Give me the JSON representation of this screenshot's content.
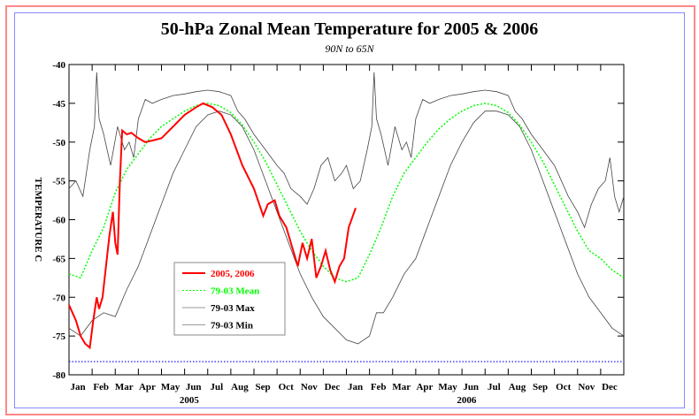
{
  "chart_data": {
    "type": "line",
    "title": "50-hPa Zonal Mean Temperature for 2005 & 2006",
    "subtitle": "90N to 65N",
    "ylabel": "TEMPERATURE C",
    "ylim": [
      -80,
      -40
    ],
    "yticks": [
      -40,
      -45,
      -50,
      -55,
      -60,
      -65,
      -70,
      -75,
      -80
    ],
    "xlim_months": [
      0,
      24
    ],
    "xtick_labels": [
      "Jan",
      "Feb",
      "Mar",
      "Apr",
      "May",
      "Jun",
      "Jul",
      "Aug",
      "Sep",
      "Oct",
      "Nov",
      "Dec",
      "Jan",
      "Feb",
      "Mar",
      "Apr",
      "May",
      "Jun",
      "Jul",
      "Aug",
      "Sep",
      "Oct",
      "Nov",
      "Dec"
    ],
    "year_labels": [
      "2005",
      "2006"
    ],
    "legend_position": "lower-left",
    "reference_line": {
      "y": -78.3,
      "color": "#0000ff",
      "style": "dotted"
    },
    "series": [
      {
        "name": "2005, 2006",
        "color": "#ff0000",
        "style": "solid",
        "x": [
          0,
          0.15,
          0.3,
          0.5,
          0.7,
          0.9,
          1.05,
          1.2,
          1.3,
          1.45,
          1.6,
          1.75,
          1.9,
          2.0,
          2.1,
          2.2,
          2.3,
          2.5,
          2.7,
          3.0,
          3.3,
          3.6,
          4.0,
          4.5,
          5.0,
          5.5,
          5.8,
          6.2,
          6.6,
          7.0,
          7.5,
          8.0,
          8.4,
          8.6,
          8.9,
          9.1,
          9.4,
          9.7,
          9.9,
          10.1,
          10.3,
          10.5,
          10.7,
          10.9,
          11.1,
          11.3,
          11.5,
          11.7,
          11.9,
          12.1,
          12.4
        ],
        "y": [
          -71,
          -72,
          -73,
          -75,
          -76,
          -76.5,
          -73,
          -70,
          -71.5,
          -70,
          -66,
          -62,
          -59,
          -63,
          -64.5,
          -55,
          -48.5,
          -49,
          -48.8,
          -49.5,
          -50,
          -49.8,
          -49.5,
          -48,
          -46.5,
          -45.5,
          -45,
          -45.5,
          -46.5,
          -49,
          -53,
          -56,
          -59.5,
          -58,
          -57.5,
          -59.5,
          -61,
          -64,
          -66,
          -63,
          -65,
          -62.5,
          -67.5,
          -66,
          -64,
          -66.5,
          -68,
          -66,
          -65,
          -61,
          -58.5
        ]
      },
      {
        "name": "79-03 Mean",
        "color": "#00ff00",
        "style": "dotted",
        "x": [
          0,
          0.5,
          1,
          1.5,
          2,
          2.5,
          3,
          3.5,
          4,
          4.5,
          5,
          5.5,
          6,
          6.5,
          7,
          7.5,
          8,
          8.5,
          9,
          9.5,
          10,
          10.5,
          11,
          11.5,
          12,
          12.5,
          13,
          13.5,
          14,
          14.5,
          15,
          15.5,
          16,
          16.5,
          17,
          17.5,
          18,
          18.5,
          19,
          19.5,
          20,
          20.5,
          21,
          21.5,
          22,
          22.5,
          23,
          23.5,
          24
        ],
        "y": [
          -67,
          -67.5,
          -64,
          -61,
          -56.5,
          -53.5,
          -51.5,
          -49.5,
          -48,
          -47,
          -46,
          -45.3,
          -45,
          -45.3,
          -46.2,
          -47.8,
          -50,
          -52.5,
          -55.5,
          -58.5,
          -61.5,
          -64,
          -66,
          -67.5,
          -68,
          -67.5,
          -64.5,
          -61,
          -57,
          -54,
          -52,
          -50,
          -48.3,
          -47,
          -46,
          -45.3,
          -45,
          -45.3,
          -46.2,
          -47.8,
          -50,
          -52.5,
          -55.5,
          -58.5,
          -61.5,
          -64,
          -65,
          -66.5,
          -67.5
        ]
      },
      {
        "name": "79-03 Max",
        "color": "#444444",
        "style": "solid",
        "x": [
          0,
          0.3,
          0.6,
          0.9,
          1.1,
          1.2,
          1.3,
          1.5,
          1.8,
          2.1,
          2.4,
          2.6,
          2.8,
          3.0,
          3.3,
          3.6,
          4,
          4.5,
          5,
          5.5,
          6,
          6.5,
          7,
          7.3,
          7.6,
          8,
          8.5,
          9,
          9.3,
          9.6,
          10,
          10.3,
          10.6,
          10.9,
          11.2,
          11.5,
          11.8,
          12,
          12.3,
          12.6,
          12.9,
          13.1,
          13.2,
          13.3,
          13.5,
          13.8,
          14.1,
          14.4,
          14.6,
          14.8,
          15,
          15.3,
          15.6,
          16,
          16.5,
          17,
          17.5,
          18,
          18.5,
          19,
          19.3,
          19.6,
          20,
          20.5,
          21,
          21.3,
          21.6,
          22,
          22.3,
          22.6,
          22.9,
          23.2,
          23.4,
          23.6,
          23.8,
          24
        ],
        "y": [
          -56,
          -55,
          -57,
          -51,
          -48,
          -41,
          -47,
          -49,
          -53,
          -48,
          -51,
          -50,
          -52,
          -47,
          -44.5,
          -45,
          -44.5,
          -44,
          -43.8,
          -43.5,
          -43.3,
          -43.5,
          -44,
          -46,
          -47,
          -49,
          -51,
          -53,
          -54,
          -56,
          -57,
          -58,
          -56,
          -53,
          -52,
          -55,
          -54,
          -53,
          -56,
          -55,
          -51,
          -48,
          -41,
          -47,
          -49,
          -53,
          -48,
          -51,
          -50,
          -52,
          -47,
          -44.5,
          -45,
          -44.5,
          -44,
          -43.8,
          -43.5,
          -43.3,
          -43.5,
          -44,
          -46,
          -47,
          -49,
          -51,
          -53,
          -55,
          -57,
          -59,
          -61,
          -58,
          -56,
          -55,
          -52,
          -57,
          -59,
          -57
        ]
      },
      {
        "name": "79-03 Min",
        "color": "#444444",
        "style": "solid",
        "x": [
          0,
          0.5,
          1,
          1.5,
          2,
          2.5,
          3,
          3.5,
          4,
          4.5,
          5,
          5.5,
          6,
          6.5,
          7,
          7.5,
          8,
          8.5,
          9,
          9.5,
          10,
          10.5,
          11,
          11.5,
          12,
          12.5,
          13,
          13.3,
          13.6,
          14,
          14.5,
          15,
          15.5,
          16,
          16.5,
          17,
          17.5,
          18,
          18.5,
          19,
          19.5,
          20,
          20.5,
          21,
          21.5,
          22,
          22.5,
          23,
          23.5,
          24
        ],
        "y": [
          -74,
          -75,
          -73,
          -72,
          -72.5,
          -69,
          -66,
          -62,
          -58,
          -54,
          -51,
          -48,
          -46.5,
          -46,
          -46.5,
          -48,
          -51,
          -55,
          -59,
          -63,
          -67,
          -70,
          -72.5,
          -74,
          -75.5,
          -76,
          -75,
          -72,
          -72,
          -70,
          -67,
          -65,
          -61,
          -57,
          -53,
          -50,
          -47.5,
          -46,
          -46,
          -46.5,
          -48,
          -51,
          -55,
          -59,
          -63,
          -67,
          -70,
          -72,
          -74,
          -75
        ]
      }
    ]
  }
}
